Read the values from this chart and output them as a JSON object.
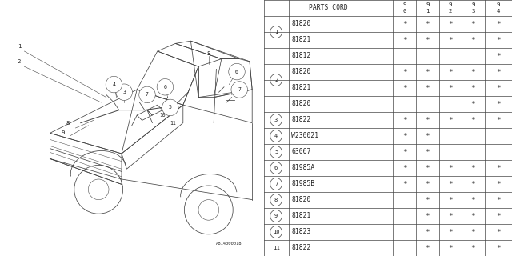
{
  "diagram_code": "AB14000018",
  "bg_color": "#ffffff",
  "line_color": "#444444",
  "text_color": "#222222",
  "year_cols": [
    "9\n0",
    "9\n1",
    "9\n2",
    "9\n3",
    "9\n4"
  ],
  "rows": [
    {
      "num": "1",
      "parts": [
        "81820",
        "81821"
      ],
      "marks": [
        [
          "*",
          "*",
          "*",
          "*",
          "*"
        ],
        [
          "*",
          "*",
          "*",
          "*",
          "*"
        ]
      ]
    },
    {
      "num": "2",
      "parts": [
        "81812",
        "81820",
        "81821",
        "81820"
      ],
      "marks": [
        [
          "",
          "",
          "",
          "",
          "*"
        ],
        [
          "*",
          "*",
          "*",
          "*",
          "*"
        ],
        [
          "*",
          "*",
          "*",
          "*",
          "*"
        ],
        [
          "",
          "",
          "",
          "*",
          "*"
        ]
      ]
    },
    {
      "num": "3",
      "parts": [
        "81822"
      ],
      "marks": [
        [
          "*",
          "*",
          "*",
          "*",
          "*"
        ]
      ]
    },
    {
      "num": "4",
      "parts": [
        "W230021"
      ],
      "marks": [
        [
          "*",
          "*",
          "",
          "",
          ""
        ]
      ]
    },
    {
      "num": "5",
      "parts": [
        "63067"
      ],
      "marks": [
        [
          "*",
          "*",
          "",
          "",
          ""
        ]
      ]
    },
    {
      "num": "6",
      "parts": [
        "81985A"
      ],
      "marks": [
        [
          "*",
          "*",
          "*",
          "*",
          "*"
        ]
      ]
    },
    {
      "num": "7",
      "parts": [
        "81985B"
      ],
      "marks": [
        [
          "*",
          "*",
          "*",
          "*",
          "*"
        ]
      ]
    },
    {
      "num": "8",
      "parts": [
        "81820"
      ],
      "marks": [
        [
          "",
          "*",
          "*",
          "*",
          "*"
        ]
      ]
    },
    {
      "num": "9",
      "parts": [
        "81821"
      ],
      "marks": [
        [
          "",
          "*",
          "*",
          "*",
          "*"
        ]
      ]
    },
    {
      "num": "10",
      "parts": [
        "81823"
      ],
      "marks": [
        [
          "",
          "*",
          "*",
          "*",
          "*"
        ]
      ]
    },
    {
      "num": "11",
      "parts": [
        "81822"
      ],
      "marks": [
        [
          "",
          "*",
          "*",
          "*",
          "*"
        ]
      ]
    }
  ]
}
